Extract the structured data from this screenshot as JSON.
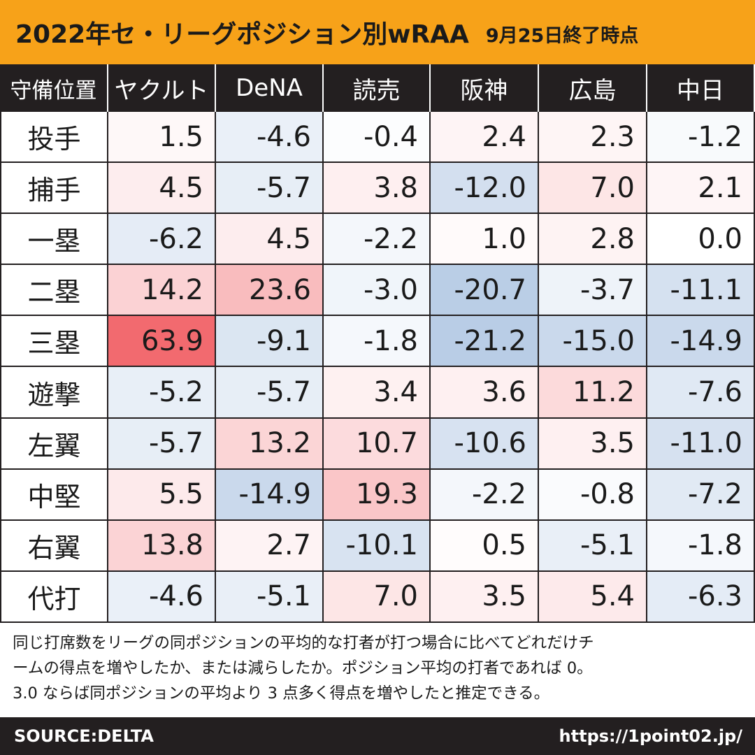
{
  "title": {
    "main": "2022年セ・リーグポジション別wRAA",
    "sub": "9月25日終了時点"
  },
  "chart_data": {
    "type": "table",
    "corner_label": "守備位置",
    "columns": [
      "ヤクルト",
      "DeNA",
      "読売",
      "阪神",
      "広島",
      "中日"
    ],
    "rows": [
      {
        "label": "投手",
        "values": [
          "1.5",
          "-4.6",
          "-0.4",
          "2.4",
          "2.3",
          "-1.2"
        ]
      },
      {
        "label": "捕手",
        "values": [
          "4.5",
          "-5.7",
          "3.8",
          "-12.0",
          "7.0",
          "2.1"
        ]
      },
      {
        "label": "一塁",
        "values": [
          "-6.2",
          "4.5",
          "-2.2",
          "1.0",
          "2.8",
          "0.0"
        ]
      },
      {
        "label": "二塁",
        "values": [
          "14.2",
          "23.6",
          "-3.0",
          "-20.7",
          "-3.7",
          "-11.1"
        ]
      },
      {
        "label": "三塁",
        "values": [
          "63.9",
          "-9.1",
          "-1.8",
          "-21.2",
          "-15.0",
          "-14.9"
        ]
      },
      {
        "label": "遊撃",
        "values": [
          "-5.2",
          "-5.7",
          "3.4",
          "3.6",
          "11.2",
          "-7.6"
        ]
      },
      {
        "label": "左翼",
        "values": [
          "-5.7",
          "13.2",
          "10.7",
          "-10.6",
          "3.5",
          "-11.0"
        ]
      },
      {
        "label": "中堅",
        "values": [
          "5.5",
          "-14.9",
          "19.3",
          "-2.2",
          "-0.8",
          "-7.2"
        ]
      },
      {
        "label": "右翼",
        "values": [
          "13.8",
          "2.7",
          "-10.1",
          "0.5",
          "-5.1",
          "-1.8"
        ]
      },
      {
        "label": "代打",
        "values": [
          "-4.6",
          "-5.1",
          "7.0",
          "3.5",
          "5.4",
          "-6.3"
        ]
      }
    ],
    "color_scale": {
      "positive": "#f26a6f",
      "negative": "#b9cde6",
      "neutral": "#ffffff"
    }
  },
  "note": {
    "lines": [
      "同じ打席数をリーグの同ポジションの平均的な打者が打つ場合に比べてどれだけチ",
      "ームの得点を増やしたか、または減らしたか。ポジション平均の打者であれば 0。",
      "3.0 ならば同ポジションの平均より 3 点多く得点を増やしたと推定できる。"
    ]
  },
  "footer": {
    "source": "SOURCE:DELTA",
    "url": "https://1point02.jp/"
  }
}
